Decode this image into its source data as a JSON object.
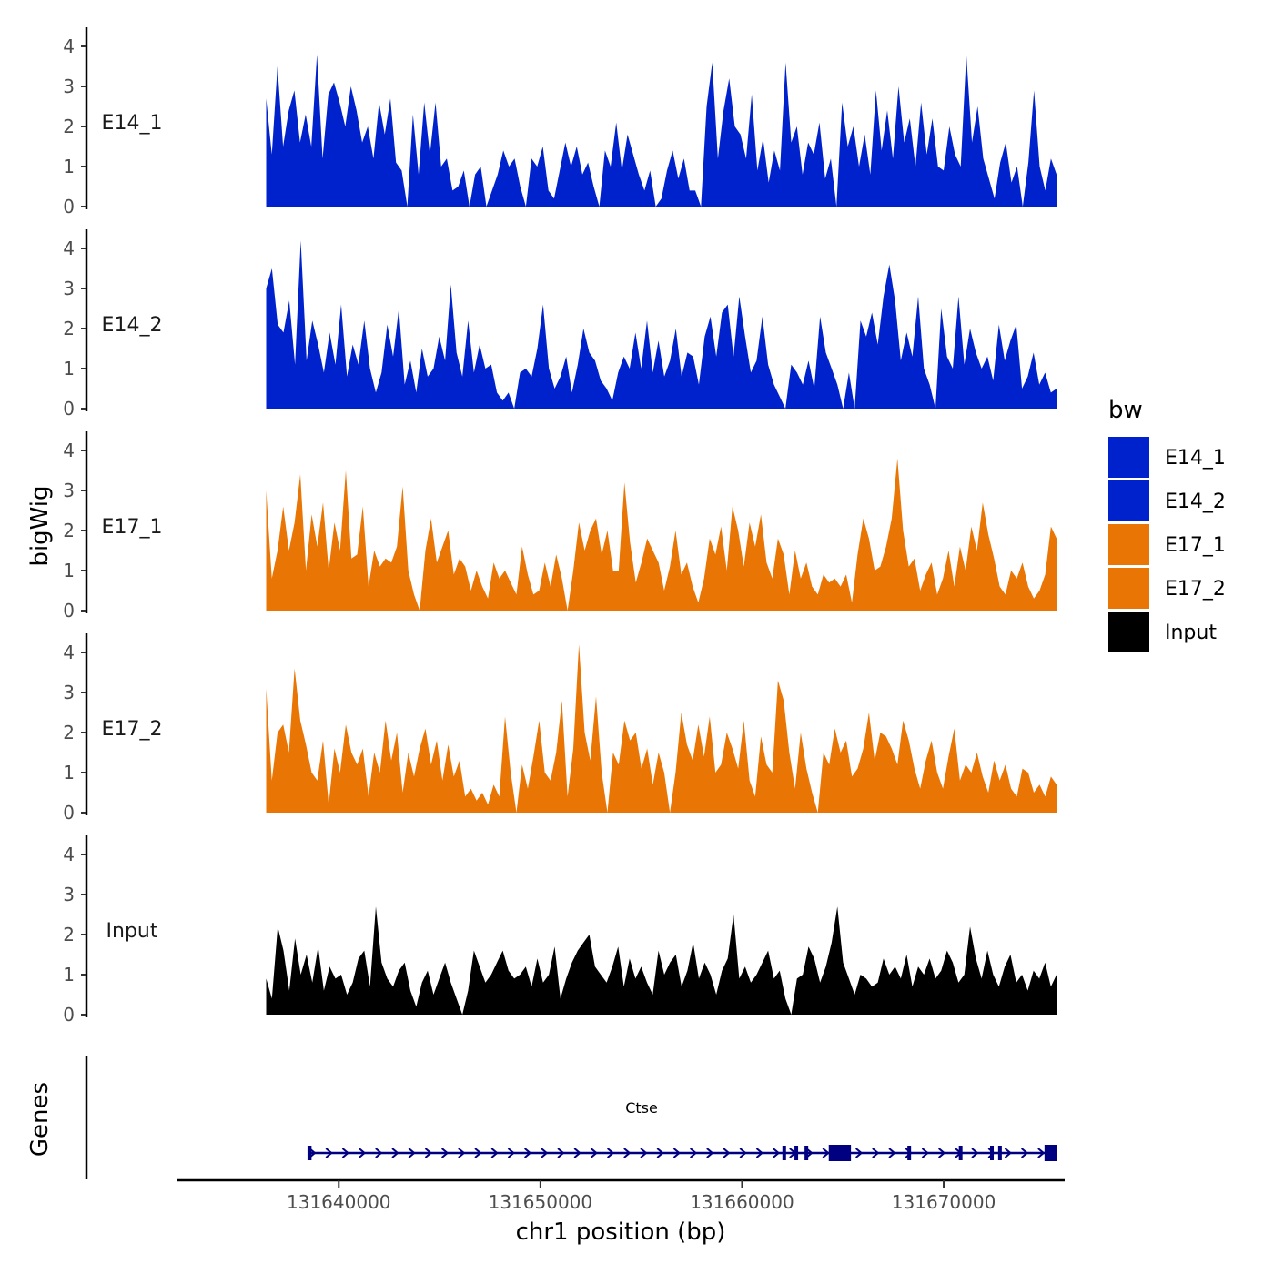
{
  "chart_data": {
    "type": "area",
    "ylabel": "bigWig",
    "genes_label": "Genes",
    "xlabel": "chr1 position (bp)",
    "xlim": [
      131632000,
      131676000
    ],
    "x_ticks": [
      131640000,
      131650000,
      131660000,
      131670000
    ],
    "x_tick_labels": [
      "131640000",
      "131650000",
      "131660000",
      "131670000"
    ],
    "ylim": [
      0,
      4.4
    ],
    "y_ticks": [
      0,
      1,
      2,
      3,
      4
    ],
    "y_tick_labels": [
      "0",
      "1",
      "2",
      "3",
      "4"
    ],
    "legend": {
      "title": "bw",
      "entries": [
        {
          "label": "E14_1",
          "color": "#0022CC"
        },
        {
          "label": "E14_2",
          "color": "#0022CC"
        },
        {
          "label": "E17_1",
          "color": "#E87504"
        },
        {
          "label": "E17_2",
          "color": "#E87504"
        },
        {
          "label": "Input",
          "color": "#000000"
        }
      ]
    },
    "series": [
      {
        "name": "E14_1",
        "color": "#0022CC",
        "x_start": 131636400,
        "x_end": 131675600,
        "values": [
          2.7,
          1.3,
          3.5,
          1.5,
          2.4,
          2.9,
          1.6,
          2.3,
          1.5,
          3.8,
          1.2,
          2.8,
          3.1,
          2.6,
          2.0,
          3.0,
          2.4,
          1.6,
          2.0,
          1.2,
          2.6,
          1.8,
          2.7,
          1.1,
          0.9,
          0.0,
          2.3,
          0.8,
          2.6,
          1.3,
          2.6,
          1.0,
          1.2,
          0.4,
          0.5,
          0.9,
          0.0,
          0.8,
          1.0,
          0.0,
          0.4,
          0.8,
          1.4,
          1.0,
          1.2,
          0.5,
          0.0,
          1.2,
          1.0,
          1.5,
          0.4,
          0.2,
          0.9,
          1.6,
          1.0,
          1.5,
          0.8,
          1.1,
          0.5,
          0.0,
          1.4,
          1.0,
          2.1,
          0.9,
          1.8,
          1.3,
          0.8,
          0.4,
          0.9,
          0.0,
          0.2,
          0.9,
          1.4,
          0.7,
          1.2,
          0.4,
          0.4,
          0.0,
          2.5,
          3.6,
          1.2,
          2.4,
          3.2,
          2.0,
          1.8,
          1.2,
          2.8,
          0.9,
          1.7,
          0.6,
          1.4,
          0.9,
          3.6,
          1.6,
          2.0,
          0.8,
          1.6,
          1.3,
          2.1,
          0.7,
          1.2,
          0.0,
          2.6,
          1.5,
          2.0,
          1.0,
          1.8,
          0.8,
          2.9,
          1.4,
          2.4,
          1.2,
          3.0,
          1.6,
          2.2,
          1.0,
          2.6,
          1.3,
          2.2,
          1.0,
          0.9,
          2.0,
          1.3,
          1.0,
          3.8,
          1.6,
          2.5,
          1.2,
          0.7,
          0.2,
          1.1,
          1.6,
          0.6,
          1.0,
          0.0,
          1.1,
          2.9,
          1.0,
          0.4,
          1.2,
          0.8
        ]
      },
      {
        "name": "E14_2",
        "color": "#0022CC",
        "x_start": 131636400,
        "x_end": 131675600,
        "values": [
          3.0,
          3.5,
          2.1,
          1.9,
          2.7,
          1.1,
          4.2,
          1.2,
          2.2,
          1.6,
          0.9,
          1.9,
          1.1,
          2.6,
          0.8,
          1.6,
          1.1,
          2.2,
          1.0,
          0.4,
          0.9,
          2.1,
          1.3,
          2.5,
          0.6,
          1.2,
          0.4,
          1.5,
          0.8,
          1.0,
          1.8,
          1.2,
          3.1,
          1.4,
          0.8,
          2.2,
          0.9,
          1.6,
          1.0,
          1.1,
          0.4,
          0.2,
          0.4,
          0.0,
          0.9,
          1.0,
          0.8,
          1.5,
          2.6,
          1.0,
          0.5,
          0.8,
          1.3,
          0.4,
          1.1,
          2.0,
          1.4,
          1.2,
          0.7,
          0.5,
          0.2,
          0.9,
          1.3,
          1.0,
          1.9,
          1.0,
          2.2,
          0.9,
          1.7,
          0.8,
          1.2,
          2.0,
          0.8,
          1.4,
          1.3,
          0.6,
          1.8,
          2.3,
          1.3,
          2.4,
          2.6,
          1.3,
          2.8,
          1.8,
          0.9,
          1.2,
          2.3,
          1.1,
          0.6,
          0.3,
          0.0,
          1.1,
          0.9,
          0.6,
          1.2,
          0.5,
          2.3,
          1.4,
          1.0,
          0.6,
          0.0,
          0.9,
          0.0,
          2.2,
          1.8,
          2.4,
          1.6,
          2.8,
          3.6,
          2.7,
          1.2,
          1.9,
          1.3,
          2.8,
          1.0,
          0.6,
          0.0,
          2.5,
          1.3,
          1.0,
          2.8,
          1.1,
          2.0,
          1.4,
          1.0,
          1.3,
          0.7,
          2.1,
          1.2,
          1.7,
          2.1,
          0.5,
          0.8,
          1.4,
          0.6,
          0.9,
          0.4,
          0.5
        ]
      },
      {
        "name": "E17_1",
        "color": "#E87504",
        "x_start": 131636400,
        "x_end": 131675600,
        "values": [
          3.0,
          0.8,
          1.5,
          2.6,
          1.5,
          2.2,
          3.4,
          1.0,
          2.4,
          1.6,
          2.7,
          1.0,
          2.2,
          1.5,
          3.5,
          1.3,
          1.4,
          2.6,
          0.6,
          1.5,
          1.1,
          1.3,
          1.2,
          1.6,
          3.1,
          1.0,
          0.4,
          0.0,
          1.5,
          2.3,
          1.2,
          1.6,
          2.0,
          0.9,
          1.3,
          1.1,
          0.5,
          1.0,
          0.6,
          0.3,
          1.2,
          0.8,
          1.0,
          0.7,
          0.4,
          1.6,
          0.9,
          0.4,
          0.5,
          1.2,
          0.6,
          1.4,
          0.8,
          0.0,
          1.0,
          2.2,
          1.5,
          2.0,
          2.3,
          1.4,
          2.0,
          1.0,
          1.0,
          3.2,
          1.7,
          0.7,
          1.2,
          1.8,
          1.5,
          1.2,
          0.5,
          1.1,
          2.0,
          0.9,
          1.2,
          0.6,
          0.2,
          0.8,
          1.8,
          1.4,
          2.1,
          1.0,
          2.6,
          2.0,
          1.1,
          2.2,
          1.6,
          2.4,
          1.2,
          0.8,
          1.8,
          1.4,
          0.4,
          1.5,
          0.8,
          1.2,
          0.6,
          0.4,
          0.9,
          0.7,
          0.8,
          0.6,
          0.9,
          0.2,
          1.4,
          2.3,
          1.8,
          1.0,
          1.1,
          1.6,
          2.3,
          3.8,
          2.0,
          1.1,
          1.3,
          0.5,
          0.9,
          1.2,
          0.4,
          0.8,
          1.5,
          0.6,
          1.6,
          1.0,
          2.1,
          1.5,
          2.7,
          1.9,
          1.3,
          0.6,
          0.4,
          1.0,
          0.8,
          1.2,
          0.6,
          0.3,
          0.5,
          0.9,
          2.1,
          1.8
        ]
      },
      {
        "name": "E17_2",
        "color": "#E87504",
        "x_start": 131636400,
        "x_end": 131675600,
        "values": [
          3.1,
          0.8,
          2.0,
          2.2,
          1.5,
          3.6,
          2.3,
          1.7,
          1.0,
          0.8,
          1.8,
          0.2,
          1.6,
          1.0,
          2.2,
          1.5,
          1.2,
          1.6,
          0.4,
          1.5,
          1.0,
          2.3,
          1.3,
          2.0,
          0.5,
          1.5,
          0.9,
          1.6,
          2.1,
          1.2,
          1.8,
          0.8,
          1.7,
          0.9,
          1.3,
          0.4,
          0.6,
          0.3,
          0.5,
          0.2,
          0.7,
          0.4,
          2.4,
          1.0,
          0.0,
          1.2,
          0.6,
          1.4,
          2.3,
          1.0,
          0.8,
          1.5,
          2.8,
          0.4,
          1.6,
          4.2,
          2.0,
          1.3,
          2.9,
          1.0,
          0.0,
          1.5,
          1.2,
          2.3,
          1.8,
          2.0,
          1.1,
          1.6,
          0.7,
          1.5,
          1.0,
          0.0,
          1.0,
          2.5,
          1.7,
          1.3,
          2.2,
          1.4,
          2.4,
          1.0,
          1.2,
          2.0,
          1.6,
          1.1,
          2.3,
          0.8,
          0.4,
          1.9,
          1.2,
          1.0,
          3.3,
          2.8,
          1.5,
          0.6,
          2.0,
          1.1,
          0.5,
          0.0,
          1.5,
          1.2,
          2.1,
          1.5,
          1.8,
          0.9,
          1.1,
          1.6,
          2.5,
          1.3,
          2.0,
          1.9,
          1.6,
          1.2,
          2.3,
          1.8,
          1.1,
          0.6,
          1.3,
          1.8,
          1.0,
          0.6,
          1.4,
          2.1,
          0.8,
          1.2,
          1.0,
          1.5,
          0.9,
          0.5,
          1.3,
          0.8,
          1.2,
          0.6,
          0.4,
          1.1,
          1.0,
          0.5,
          0.7,
          0.4,
          0.9,
          0.7
        ]
      },
      {
        "name": "Input",
        "color": "#000000",
        "x_start": 131636400,
        "x_end": 131675600,
        "values": [
          0.9,
          0.4,
          2.2,
          1.6,
          0.6,
          1.9,
          1.0,
          1.5,
          0.8,
          1.7,
          0.6,
          1.2,
          0.9,
          1.0,
          0.5,
          0.8,
          1.4,
          1.6,
          0.7,
          2.7,
          1.3,
          0.9,
          0.7,
          1.1,
          1.3,
          0.6,
          0.2,
          0.8,
          1.1,
          0.5,
          0.9,
          1.3,
          0.8,
          0.4,
          0.0,
          0.6,
          1.6,
          1.2,
          0.8,
          1.0,
          1.3,
          1.6,
          1.1,
          0.9,
          1.0,
          1.2,
          0.7,
          1.4,
          0.8,
          1.0,
          1.7,
          0.4,
          0.9,
          1.3,
          1.6,
          1.8,
          2.0,
          1.2,
          1.0,
          0.8,
          1.2,
          1.7,
          0.7,
          1.4,
          0.9,
          1.2,
          0.8,
          0.5,
          1.6,
          1.0,
          1.3,
          1.5,
          0.7,
          1.1,
          1.8,
          0.9,
          1.3,
          1.0,
          0.5,
          1.1,
          1.4,
          2.5,
          0.9,
          1.2,
          0.8,
          1.0,
          1.3,
          1.6,
          0.9,
          1.1,
          0.4,
          0.0,
          0.9,
          1.0,
          1.7,
          1.4,
          0.8,
          1.2,
          1.8,
          2.7,
          1.3,
          0.9,
          0.5,
          1.0,
          0.9,
          0.7,
          0.8,
          1.4,
          1.0,
          1.2,
          0.9,
          1.5,
          0.7,
          1.2,
          1.0,
          1.4,
          0.9,
          1.1,
          1.6,
          1.3,
          0.8,
          1.0,
          2.2,
          1.4,
          0.9,
          1.6,
          1.0,
          0.7,
          1.2,
          1.5,
          0.8,
          1.0,
          0.6,
          1.1,
          0.9,
          1.3,
          0.7,
          1.0
        ]
      }
    ],
    "gene": {
      "name": "Ctse",
      "strand": "+",
      "start": 131638500,
      "end": 131675500,
      "color": "#000080",
      "exons": [
        [
          131638450,
          131638650
        ],
        [
          131662000,
          131662150
        ],
        [
          131662600,
          131662750
        ],
        [
          131663100,
          131663250
        ],
        [
          131664300,
          131665400
        ],
        [
          131668200,
          131668350
        ],
        [
          131670750,
          131670850
        ],
        [
          131672300,
          131672450
        ],
        [
          131672700,
          131672850
        ],
        [
          131675000,
          131675600
        ]
      ]
    }
  }
}
